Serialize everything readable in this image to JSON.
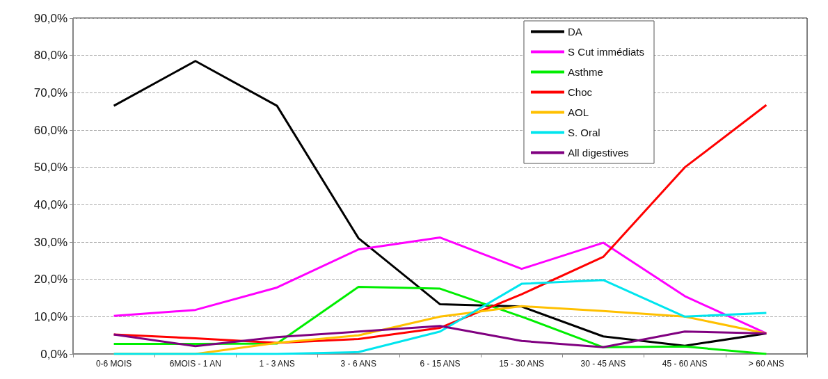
{
  "chart_data": {
    "type": "line",
    "categories": [
      "0-6 MOIS",
      "6MOIS - 1 AN",
      "1 - 3 ANS",
      "3 - 6 ANS",
      "6 - 15 ANS",
      "15 - 30 ANS",
      "30 - 45 ANS",
      "45 - 60 ANS",
      "> 60 ANS"
    ],
    "series": [
      {
        "name": "DA",
        "color": "#000000",
        "values": [
          66.5,
          78.5,
          66.5,
          31,
          13.3,
          12.7,
          4.7,
          2.2,
          5.5
        ]
      },
      {
        "name": "S Cut immédiats",
        "color": "#ff00ff",
        "values": [
          10.2,
          11.8,
          17.8,
          28,
          31.2,
          22.8,
          29.8,
          15.5,
          5.5
        ]
      },
      {
        "name": "Asthme",
        "color": "#00ee00",
        "values": [
          2.7,
          2.7,
          2.8,
          18,
          17.5,
          10,
          1.8,
          2,
          0
        ]
      },
      {
        "name": "Choc",
        "color": "#ff0000",
        "values": [
          5.2,
          4.2,
          3,
          4,
          7,
          16,
          26,
          50,
          66.7
        ]
      },
      {
        "name": "AOL",
        "color": "#ffc000",
        "values": [
          0,
          0,
          3,
          5,
          10,
          12.8,
          11.5,
          10,
          5.5
        ]
      },
      {
        "name": "S. Oral",
        "color": "#00e5ee",
        "values": [
          0,
          0,
          0,
          0.5,
          6,
          18.8,
          19.8,
          10,
          11
        ]
      },
      {
        "name": "All digestives",
        "color": "#800080",
        "values": [
          5.2,
          2.1,
          4.5,
          6,
          7.5,
          3.5,
          1.8,
          6,
          5.5
        ]
      }
    ],
    "ylim": [
      0,
      90
    ],
    "yticks": [
      {
        "value": 0,
        "label": "0,0%"
      },
      {
        "value": 10,
        "label": "10,0%"
      },
      {
        "value": 20,
        "label": "20,0%"
      },
      {
        "value": 30,
        "label": "30,0%"
      },
      {
        "value": 40,
        "label": "40,0%"
      },
      {
        "value": 50,
        "label": "50,0%"
      },
      {
        "value": 60,
        "label": "60,0%"
      },
      {
        "value": 70,
        "label": "70,0%"
      },
      {
        "value": 80,
        "label": "80,0%"
      },
      {
        "value": 90,
        "label": "90,0%"
      }
    ],
    "grid": "y",
    "legend": "top right",
    "marker": "none",
    "line_style": "solid"
  }
}
